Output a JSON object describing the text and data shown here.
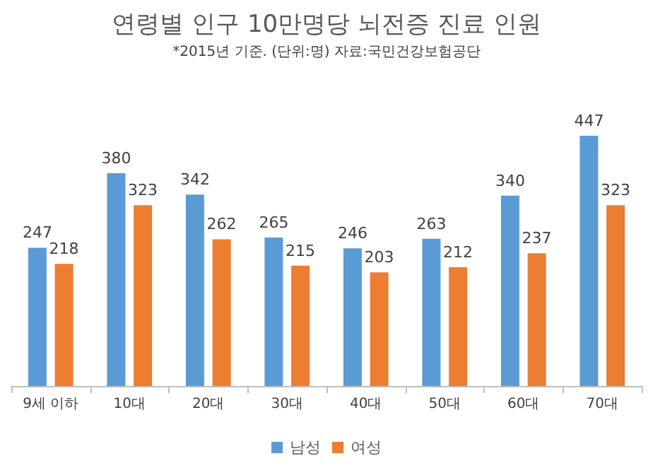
{
  "chart_data": {
    "type": "bar",
    "title": "연령별 인구 10만명당 뇌전증 진료 인원",
    "subtitle": "*2015년 기준. (단위:명) 자료:국민건강보험공단",
    "categories": [
      "9세 이하",
      "10대",
      "20대",
      "30대",
      "40대",
      "50대",
      "60대",
      "70대"
    ],
    "series": [
      {
        "name": "남성",
        "color": "#5b9bd5",
        "values": [
          247,
          380,
          342,
          265,
          246,
          263,
          340,
          447
        ]
      },
      {
        "name": "여성",
        "color": "#ed7d31",
        "values": [
          218,
          323,
          262,
          215,
          203,
          212,
          237,
          323
        ]
      }
    ],
    "data_labels": true,
    "legend": "bottom"
  }
}
